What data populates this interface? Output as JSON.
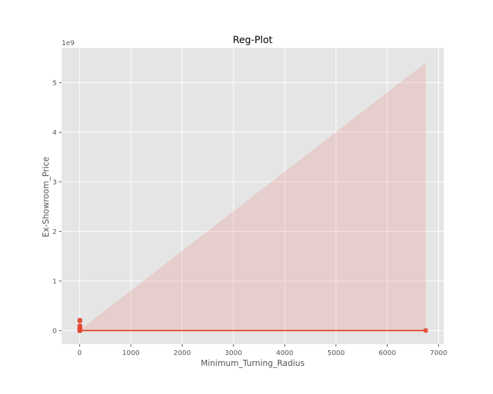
{
  "chart_data": {
    "type": "scatter",
    "title": "Reg-Plot",
    "xlabel": "Minimum_Turning_Radius",
    "ylabel": "Ex-Showroom_Price",
    "y_offset_label": "1e9",
    "xlim": [
      -350,
      7100
    ],
    "ylim": [
      -0.27,
      5.7
    ],
    "x_ticks": [
      0,
      1000,
      2000,
      3000,
      4000,
      5000,
      6000,
      7000
    ],
    "x_tick_labels": [
      "0",
      "1000",
      "2000",
      "3000",
      "4000",
      "5000",
      "6000",
      "7000"
    ],
    "y_ticks": [
      0,
      1,
      2,
      3,
      4,
      5
    ],
    "y_tick_labels": [
      "0",
      "1",
      "2",
      "3",
      "4",
      "5"
    ],
    "grid": true,
    "series": [
      {
        "kind": "points",
        "x": [
          5,
          5.2,
          5.3,
          5.5,
          5.6,
          5.8,
          6.0,
          5.1,
          5.4,
          5.7,
          5.9,
          6.1,
          5.5,
          5.3,
          5.2,
          5.6,
          6750
        ],
        "y": [
          0.0006,
          0.001,
          0.0015,
          0.0025,
          0.005,
          0.01,
          0.02,
          0.03,
          0.05,
          0.08,
          0.1,
          0.2,
          0.21,
          0.004,
          0.007,
          0.012,
          0.003
        ]
      },
      {
        "kind": "regression",
        "x": [
          0,
          6750
        ],
        "y": [
          0.003,
          0.003
        ]
      },
      {
        "kind": "confidence_band",
        "x": [
          0,
          6750
        ],
        "lower": [
          0.0,
          0.0
        ],
        "upper": [
          0.01,
          5.4
        ]
      }
    ],
    "colors": {
      "points": "#E24A33",
      "line": "#E24A33",
      "band": "#E24A33",
      "plot_bg": "#E5E5E5",
      "grid": "#FFFFFF"
    }
  }
}
